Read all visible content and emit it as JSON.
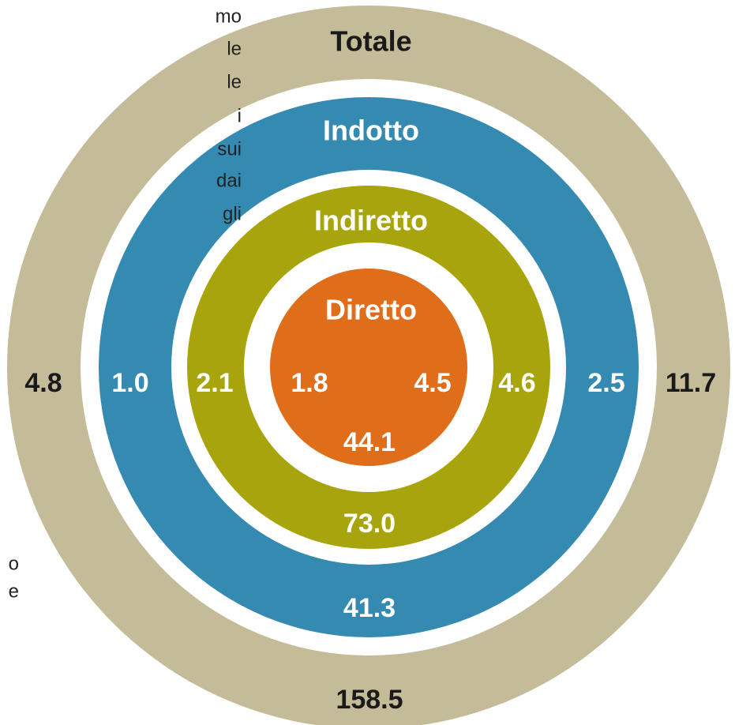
{
  "rings": [
    {
      "label": "Totale",
      "left": "4.8",
      "right": "11.7",
      "bottom": "158.5"
    },
    {
      "label": "Indotto",
      "left": "1.0",
      "right": "2.5",
      "bottom": "41.3"
    },
    {
      "label": "Indiretto",
      "left": "2.1",
      "right": "4.6",
      "bottom": "73.0"
    },
    {
      "label": "Diretto",
      "left": "1.8",
      "right": "4.5",
      "bottom": "44.1"
    }
  ],
  "side_text": [
    "mo",
    "le",
    "le",
    "i",
    "sui",
    "dai",
    "gli"
  ],
  "side_fragments": [
    "o",
    "e"
  ]
}
